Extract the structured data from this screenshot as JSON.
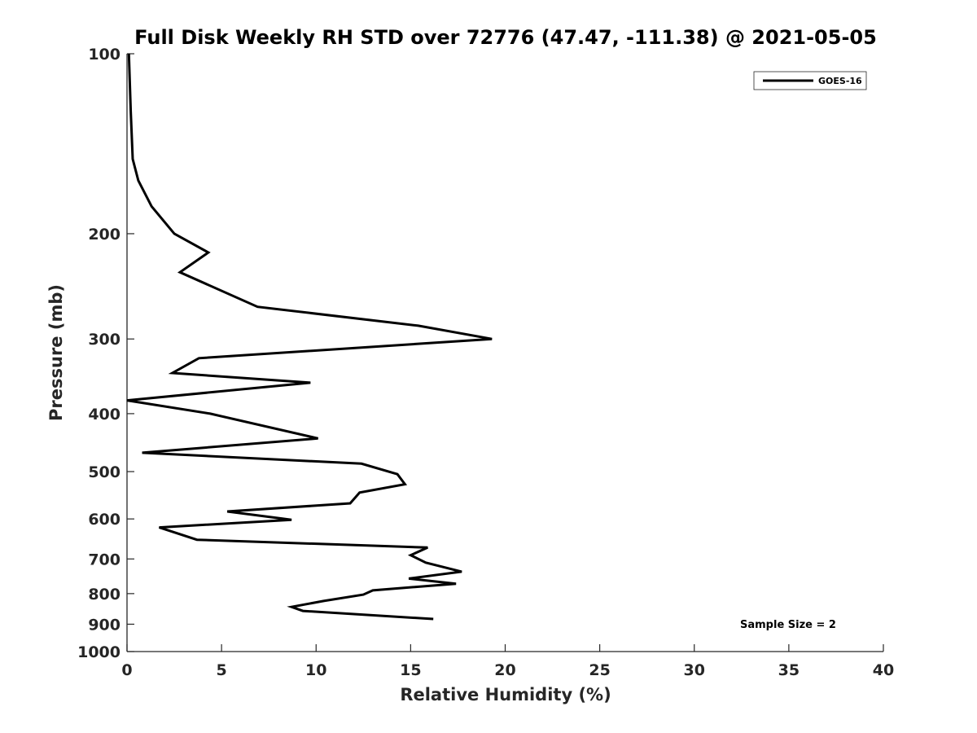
{
  "chart_data": {
    "type": "line",
    "title": "Full Disk Weekly RH STD over 72776 (47.47, -111.38) @ 2021-05-05",
    "xlabel": "Relative Humidity (%)",
    "ylabel": "Pressure (mb)",
    "xlim": [
      0,
      40
    ],
    "ylim": [
      100,
      1000
    ],
    "yscale": "log",
    "y_reversed": true,
    "x_ticks": [
      0,
      5,
      10,
      15,
      20,
      25,
      30,
      35,
      40
    ],
    "y_ticks": [
      100,
      200,
      300,
      400,
      500,
      600,
      700,
      800,
      900,
      1000
    ],
    "grid": false,
    "legend_position": "top-right",
    "annotation": "Sample Size = 2",
    "series": [
      {
        "name": "GOES-16",
        "color": "#000000",
        "points": [
          {
            "x": 0.1,
            "y": 100
          },
          {
            "x": 0.2,
            "y": 125
          },
          {
            "x": 0.3,
            "y": 150
          },
          {
            "x": 0.6,
            "y": 163
          },
          {
            "x": 1.3,
            "y": 180
          },
          {
            "x": 2.5,
            "y": 200
          },
          {
            "x": 4.3,
            "y": 215
          },
          {
            "x": 2.8,
            "y": 232
          },
          {
            "x": 6.9,
            "y": 265
          },
          {
            "x": 15.4,
            "y": 285
          },
          {
            "x": 19.3,
            "y": 300
          },
          {
            "x": 3.8,
            "y": 323
          },
          {
            "x": 2.4,
            "y": 342
          },
          {
            "x": 9.7,
            "y": 355
          },
          {
            "x": 0.0,
            "y": 380
          },
          {
            "x": 4.4,
            "y": 400
          },
          {
            "x": 10.1,
            "y": 440
          },
          {
            "x": 0.8,
            "y": 465
          },
          {
            "x": 12.4,
            "y": 485
          },
          {
            "x": 14.3,
            "y": 505
          },
          {
            "x": 14.7,
            "y": 525
          },
          {
            "x": 12.3,
            "y": 542
          },
          {
            "x": 11.8,
            "y": 565
          },
          {
            "x": 5.3,
            "y": 583
          },
          {
            "x": 8.7,
            "y": 602
          },
          {
            "x": 1.7,
            "y": 620
          },
          {
            "x": 3.7,
            "y": 650
          },
          {
            "x": 15.9,
            "y": 670
          },
          {
            "x": 15.0,
            "y": 690
          },
          {
            "x": 15.8,
            "y": 710
          },
          {
            "x": 17.7,
            "y": 735
          },
          {
            "x": 14.9,
            "y": 755
          },
          {
            "x": 17.4,
            "y": 770
          },
          {
            "x": 13.0,
            "y": 790
          },
          {
            "x": 12.5,
            "y": 803
          },
          {
            "x": 10.4,
            "y": 823
          },
          {
            "x": 8.7,
            "y": 842
          },
          {
            "x": 9.3,
            "y": 855
          },
          {
            "x": 16.2,
            "y": 882
          }
        ]
      }
    ]
  }
}
